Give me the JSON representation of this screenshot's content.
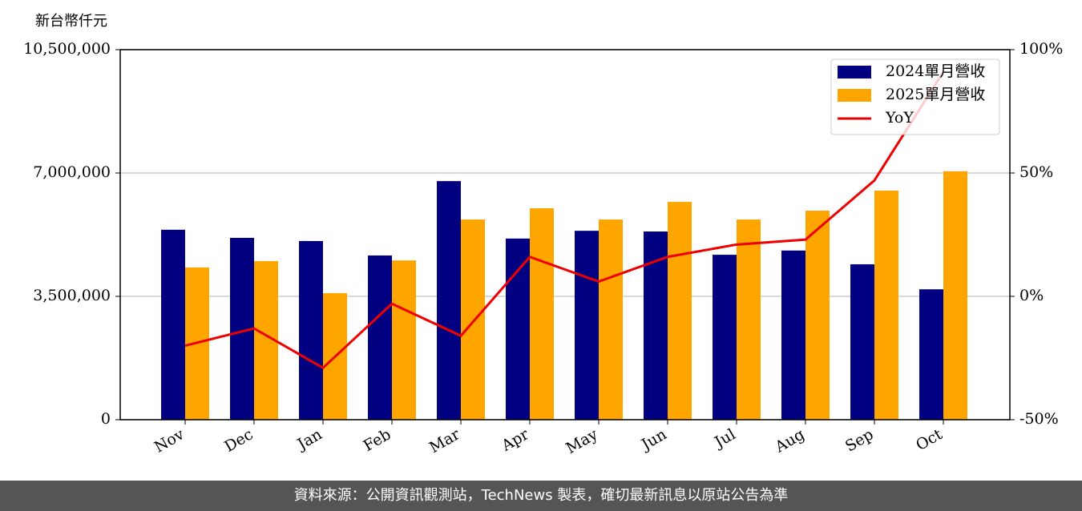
{
  "chart_data": {
    "type": "bar-line",
    "y_label": "新台幣仟元",
    "categories": [
      "Nov",
      "Dec",
      "Jan",
      "Feb",
      "Mar",
      "Apr",
      "May",
      "Jun",
      "Jul",
      "Aug",
      "Sep",
      "Oct"
    ],
    "series": [
      {
        "name": "2024單月營收",
        "type": "bar",
        "color": "#000080",
        "values": [
          5390000,
          5160000,
          5070000,
          4660000,
          6770000,
          5140000,
          5360000,
          5340000,
          4680000,
          4800000,
          4410000,
          3700000
        ]
      },
      {
        "name": "2025單月營收",
        "type": "bar",
        "color": "#ffa500",
        "values": [
          4320000,
          4500000,
          3590000,
          4520000,
          5680000,
          6000000,
          5680000,
          6180000,
          5680000,
          5930000,
          6500000,
          7050000
        ]
      },
      {
        "name": "YoY",
        "type": "line",
        "axis": "y2",
        "color": "#ee0000",
        "values": [
          -20,
          -13,
          -29,
          -3,
          -16,
          16,
          6,
          16,
          21,
          23,
          47,
          91
        ]
      }
    ],
    "ylim": [
      0,
      10500000
    ],
    "yticks": [
      0,
      {
        "value": 3500000,
        "label": "3,500,000"
      },
      {
        "value": 7000000,
        "label": "7,000,000"
      },
      {
        "value": 10500000,
        "label": "10,500,000"
      }
    ],
    "y2lim": [
      -50,
      100
    ],
    "y2ticks": [
      {
        "value": -50,
        "label": "-50%"
      },
      {
        "value": 0,
        "label": "0%"
      },
      {
        "value": 50,
        "label": "50%"
      },
      {
        "value": 100,
        "label": "100%"
      }
    ],
    "grid": true,
    "legend": "upper right"
  },
  "footer": "資料來源：公開資訊觀測站，TechNews 製表，確切最新訊息以原站公告為準"
}
